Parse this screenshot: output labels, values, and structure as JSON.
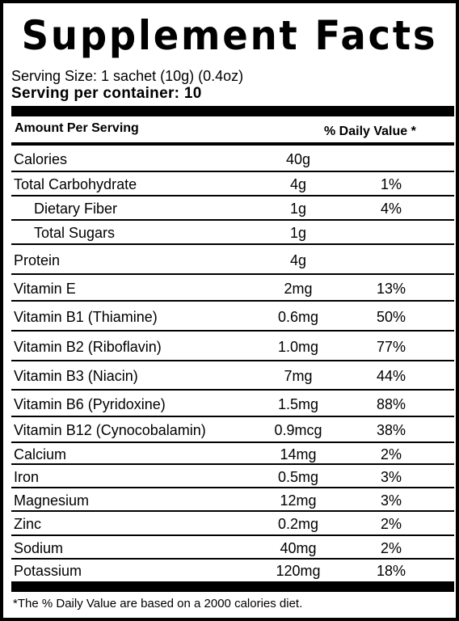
{
  "title": "Supplement Facts",
  "serving_size": "Serving Size: 1 sachet (10g) (0.4oz)",
  "serving_per_container": "Serving per container: 10",
  "header": {
    "amount_label": "Amount Per Serving",
    "dv_label": "% Daily Value *"
  },
  "rows": [
    {
      "name": "Calories",
      "amount": "40g",
      "dv": "",
      "indent": false
    },
    {
      "name": "Total Carbohydrate",
      "amount": "4g",
      "dv": "1%",
      "indent": false
    },
    {
      "name": "Dietary Fiber",
      "amount": "1g",
      "dv": "4%",
      "indent": true
    },
    {
      "name": "Total Sugars",
      "amount": "1g",
      "dv": "",
      "indent": true
    },
    {
      "name": "Protein",
      "amount": "4g",
      "dv": "",
      "indent": false
    },
    {
      "name": "Vitamin E",
      "amount": "2mg",
      "dv": "13%",
      "indent": false
    },
    {
      "name": "Vitamin B1 (Thiamine)",
      "amount": "0.6mg",
      "dv": "50%",
      "indent": false
    },
    {
      "name": "Vitamin B2 (Riboflavin)",
      "amount": "1.0mg",
      "dv": "77%",
      "indent": false
    },
    {
      "name": "Vitamin B3 (Niacin)",
      "amount": "7mg",
      "dv": "44%",
      "indent": false
    },
    {
      "name": "Vitamin B6 (Pyridoxine)",
      "amount": "1.5mg",
      "dv": "88%",
      "indent": false
    },
    {
      "name": "Vitamin B12 (Cynocobalamin)",
      "amount": "0.9mcg",
      "dv": "38%",
      "indent": false
    },
    {
      "name": "Calcium",
      "amount": "14mg",
      "dv": "2%",
      "indent": false
    },
    {
      "name": "Iron",
      "amount": "0.5mg",
      "dv": "3%",
      "indent": false
    },
    {
      "name": "Magnesium",
      "amount": "12mg",
      "dv": "3%",
      "indent": false
    },
    {
      "name": "Zinc",
      "amount": "0.2mg",
      "dv": "2%",
      "indent": false
    },
    {
      "name": "Sodium",
      "amount": "40mg",
      "dv": "2%",
      "indent": false
    },
    {
      "name": "Potassium",
      "amount": "120mg",
      "dv": "18%",
      "indent": false
    }
  ],
  "footnote": "*The % Daily Value are based on a 2000 calories diet."
}
